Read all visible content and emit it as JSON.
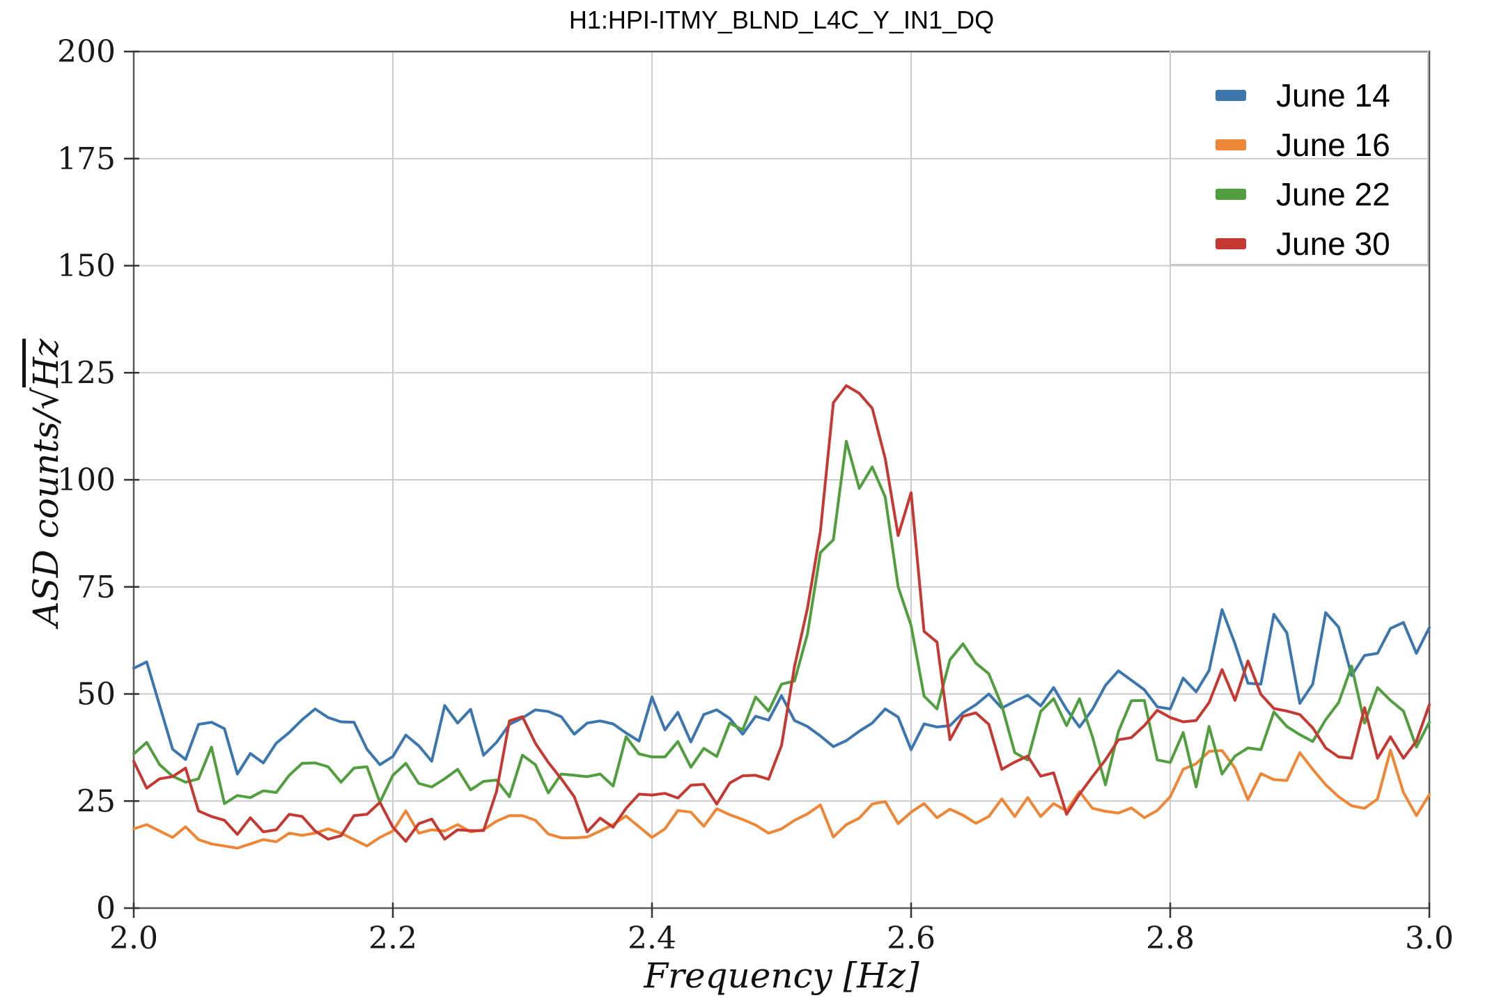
{
  "title": "H1:HPI-ITMY_BLND_L4C_Y_IN1_DQ",
  "axes": {
    "xlabel_plain": "Frequency [Hz]",
    "ylabel_plain": "ASD counts/√Hz"
  },
  "chart_data": {
    "type": "line",
    "title": "H1:HPI-ITMY_BLND_L4C_Y_IN1_DQ",
    "xlabel": "Frequency [Hz]",
    "ylabel": "ASD counts/√Hz",
    "xlim": [
      2.0,
      3.0
    ],
    "ylim": [
      0,
      200
    ],
    "x_ticks": [
      2.0,
      2.2,
      2.4,
      2.6,
      2.8,
      3.0
    ],
    "x_tick_labels": [
      "2.0",
      "2.2",
      "2.4",
      "2.6",
      "2.8",
      "3.0"
    ],
    "y_ticks": [
      0,
      25,
      50,
      75,
      100,
      125,
      150,
      175,
      200
    ],
    "y_tick_labels": [
      "0",
      "25",
      "50",
      "75",
      "100",
      "125",
      "150",
      "175",
      "200"
    ],
    "grid": true,
    "grid_color": "#cccccc",
    "spine_color": "#5a5a5a",
    "legend_position": "upper right",
    "x_start": 2.0,
    "x_step": 0.01,
    "series": [
      {
        "name": "June 14",
        "color": "#3b76af",
        "values": [
          56,
          57.5,
          47.3,
          37.1,
          34.7,
          42.9,
          43.4,
          41.9,
          31.3,
          36.1,
          33.9,
          38.5,
          41,
          44,
          46.5,
          44.5,
          43.5,
          43.4,
          37.1,
          33.5,
          35.4,
          40.4,
          37.9,
          34.3,
          47.3,
          43.2,
          46.4,
          35.7,
          38.7,
          42.9,
          44.4,
          46.3,
          45.9,
          44.7,
          40.6,
          43.2,
          43.7,
          43,
          40.9,
          39,
          49.3,
          41.6,
          45.7,
          38.8,
          45.2,
          46.3,
          44.3,
          40.6,
          44.8,
          43.9,
          49.6,
          43.8,
          42.4,
          40.2,
          37.7,
          39.1,
          41.3,
          43.2,
          46.5,
          44.6,
          37,
          43,
          42.3,
          42.6,
          45.6,
          47.5,
          50,
          46.7,
          48.3,
          49.7,
          47.2,
          51.5,
          46.4,
          42.3,
          46.4,
          52,
          55.4,
          53.2,
          51,
          47,
          46.5,
          53.7,
          50.5,
          55.5,
          69.7,
          61.7,
          52.5,
          52.3,
          68.6,
          64.3,
          47.8,
          52.3,
          69,
          65.6,
          54.3,
          59,
          59.5,
          65.3,
          66.7,
          59.5,
          65.5
        ]
      },
      {
        "name": "June 16",
        "color": "#ef8636",
        "values": [
          18.5,
          19.5,
          18,
          16.5,
          19,
          16,
          15,
          14.5,
          14,
          15,
          16,
          15.5,
          17.5,
          17,
          17.5,
          18.5,
          17.5,
          16,
          14.5,
          16.5,
          18,
          22.7,
          17.5,
          18.3,
          18,
          19.5,
          17.8,
          18.3,
          20.3,
          21.6,
          21.6,
          20.5,
          17.3,
          16.4,
          16.4,
          16.6,
          18,
          19.5,
          21.5,
          19,
          16.5,
          18.5,
          22.8,
          22.4,
          19.1,
          23.2,
          21.8,
          20.7,
          19.4,
          17.5,
          18.5,
          20.5,
          22,
          24.1,
          16.6,
          19.5,
          21,
          24.3,
          24.9,
          19.7,
          22.4,
          24.4,
          21.1,
          23.1,
          21.7,
          19.8,
          21.4,
          25.5,
          21.4,
          25.8,
          21.4,
          24.4,
          22.7,
          27.2,
          23.3,
          22.6,
          22.2,
          23.4,
          21.1,
          22.8,
          26,
          32.4,
          33.7,
          36.6,
          36.8,
          32.7,
          25.3,
          31.4,
          30,
          29.8,
          36.3,
          32.4,
          28.8,
          26,
          23.9,
          23.3,
          25.5,
          36.9,
          27,
          21.6,
          26.5
        ]
      },
      {
        "name": "June 22",
        "color": "#519e3e",
        "values": [
          36,
          38.7,
          33.5,
          30.8,
          29.4,
          30.2,
          37.6,
          24.4,
          26.3,
          25.8,
          27.4,
          27,
          31,
          33.8,
          33.9,
          33,
          29.4,
          32.7,
          33,
          24.7,
          31,
          33.8,
          29.1,
          28.3,
          30.2,
          32.4,
          27.6,
          29.6,
          29.9,
          26,
          35.7,
          33.5,
          26.9,
          31.3,
          31,
          30.7,
          31.3,
          28.5,
          40,
          36,
          35.3,
          35.3,
          38.9,
          32.9,
          37.3,
          35.4,
          43.2,
          41.6,
          49.3,
          46,
          52.3,
          53,
          64,
          83,
          86,
          109,
          98,
          103,
          96,
          75,
          66,
          49.5,
          46.5,
          58,
          61.7,
          57.2,
          54.7,
          47.3,
          36.3,
          34.6,
          45.9,
          48.9,
          42.6,
          48.9,
          40,
          28.8,
          41.2,
          48.4,
          48.5,
          34.6,
          34,
          41,
          28.3,
          42.4,
          31.3,
          35.5,
          37.4,
          37,
          45.8,
          42.4,
          40.5,
          38.9,
          44,
          48,
          56.5,
          43.2,
          51.5,
          48.5,
          46,
          37.6,
          43.4
        ]
      },
      {
        "name": "June 30",
        "color": "#c53932",
        "values": [
          34.3,
          28,
          30.2,
          30.7,
          32.7,
          22.7,
          21.4,
          20.5,
          17.2,
          21.1,
          17.8,
          18.3,
          21.9,
          21.4,
          18,
          16.1,
          16.9,
          21.6,
          21.9,
          24.7,
          18.9,
          15.6,
          19.7,
          20.8,
          16.1,
          18.3,
          18.1,
          18.1,
          27.2,
          43.7,
          44.7,
          38.5,
          34,
          30.2,
          26,
          17.8,
          21,
          18.9,
          23.3,
          26.6,
          26.4,
          26.8,
          25.7,
          28.7,
          28.9,
          24.3,
          29.2,
          30.9,
          31,
          30.1,
          38,
          56.4,
          70,
          88,
          118,
          122,
          120.2,
          116.7,
          105,
          87,
          97,
          64.6,
          62.1,
          39.3,
          44.8,
          45.6,
          42.9,
          32.4,
          34.1,
          35.5,
          30.8,
          31.6,
          21.9,
          26.6,
          30.7,
          34.6,
          39.3,
          39.8,
          42.6,
          46.2,
          44.5,
          43.5,
          43.8,
          48,
          55.7,
          48.5,
          57.7,
          49.9,
          46.6,
          46,
          45.2,
          42.1,
          37.4,
          35.3,
          35,
          46.8,
          35,
          40,
          35,
          39,
          47.5
        ]
      }
    ]
  }
}
